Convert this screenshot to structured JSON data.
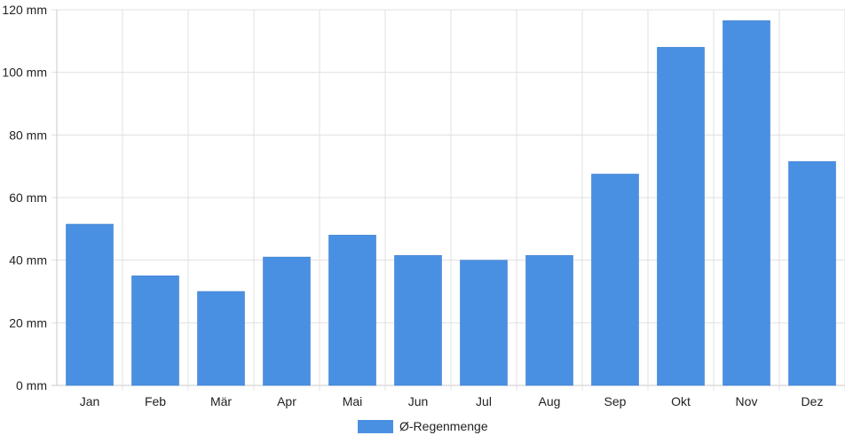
{
  "chart_data": {
    "type": "bar",
    "categories": [
      "Jan",
      "Feb",
      "Mär",
      "Apr",
      "Mai",
      "Jun",
      "Jul",
      "Aug",
      "Sep",
      "Okt",
      "Nov",
      "Dez"
    ],
    "series": [
      {
        "name": "Ø-Regenmenge",
        "values": [
          51.5,
          35,
          30,
          41,
          48,
          41.5,
          40,
          41.5,
          67.5,
          108,
          116.5,
          71.5
        ]
      }
    ],
    "y_ticks": [
      "0 mm",
      "20 mm",
      "40 mm",
      "60 mm",
      "80 mm",
      "100 mm",
      "120 mm"
    ],
    "ylim": [
      0,
      120
    ],
    "y_unit": "mm",
    "grid": true,
    "legend_position": "bottom-center",
    "colors": {
      "bar": "#4a90e2",
      "grid": "#e0e0e0",
      "axis": "#c8c8c8"
    }
  }
}
